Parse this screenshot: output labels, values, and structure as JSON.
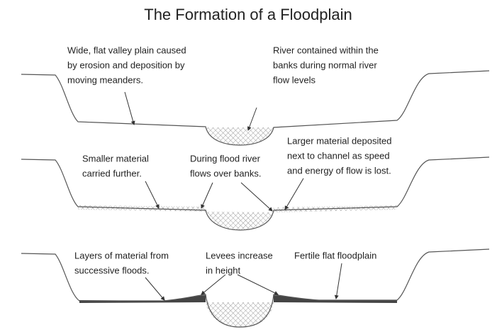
{
  "title": "The Formation of a Floodplain",
  "panels": [
    {
      "labels": [
        {
          "lines": [
            "Wide, flat valley plain caused",
            "by erosion and deposition by",
            "moving meanders."
          ]
        },
        {
          "lines": [
            "River contained within the",
            "banks during normal river",
            "flow levels"
          ]
        }
      ]
    },
    {
      "labels": [
        {
          "lines": [
            "Smaller material",
            "carried further."
          ]
        },
        {
          "lines": [
            "During flood river",
            "flows over banks."
          ]
        },
        {
          "lines": [
            "Larger material deposited",
            "next to channel as speed",
            "and energy of flow is lost."
          ]
        }
      ]
    },
    {
      "labels": [
        {
          "lines": [
            "Layers of material from",
            "successive floods."
          ]
        },
        {
          "lines": [
            "Levees increase",
            "in height"
          ]
        },
        {
          "lines": [
            "Fertile flat floodplain"
          ]
        }
      ]
    }
  ]
}
